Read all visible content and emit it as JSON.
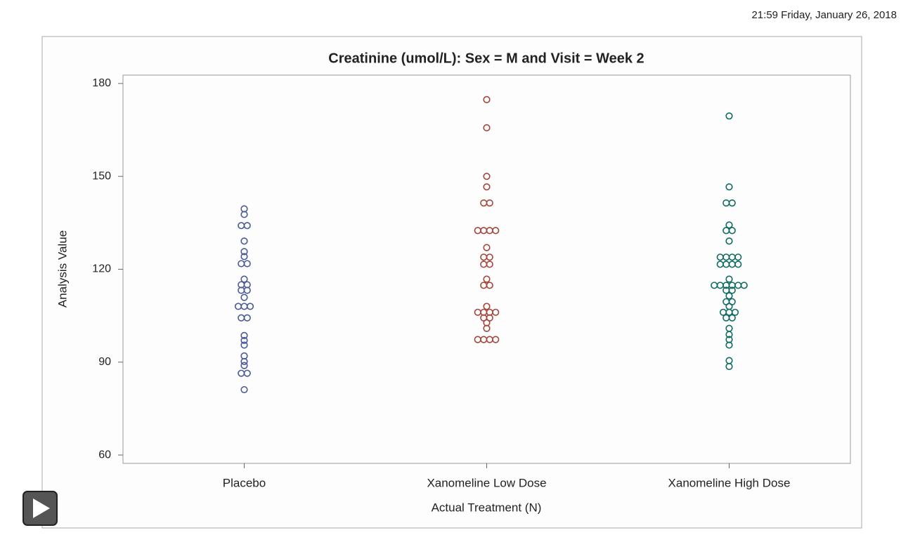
{
  "header": {
    "timestamp": "21:59 Friday, January 26, 2018"
  },
  "chart_data": {
    "type": "dotplot",
    "title": "Creatinine (umol/L): Sex = M and Visit = Week 2",
    "x_label": "Actual Treatment (N)",
    "y_label": "Analysis Value",
    "categories": [
      "Placebo",
      "Xanomeline Low Dose",
      "Xanomeline High Dose"
    ],
    "groups": [
      {
        "color": "#4a5a98",
        "values": [
          139.5,
          137.7,
          134.1,
          134.1,
          129.1,
          125.7,
          124.1,
          121.8,
          121.8,
          116.8,
          115,
          115,
          113.2,
          113.2,
          110.9,
          108,
          108,
          108,
          104.3,
          104.3,
          98.6,
          97,
          95.5,
          92,
          90.2,
          88.9,
          86.4,
          86.4,
          81.1
        ]
      },
      {
        "color": "#a5453a",
        "values": [
          174.8,
          165.7,
          150,
          146.6,
          141.4,
          141.4,
          132.5,
          132.5,
          132.5,
          132.5,
          127,
          123.9,
          123.9,
          121.6,
          121.6,
          116.8,
          114.8,
          114.8,
          108,
          106.1,
          106.1,
          106.1,
          106.1,
          104.3,
          104.3,
          102.7,
          100.9,
          97.3,
          97.3,
          97.3,
          97.3
        ]
      },
      {
        "color": "#0f6b63",
        "values": [
          169.5,
          146.6,
          141.4,
          141.4,
          134.3,
          132.5,
          132.5,
          129.1,
          123.9,
          123.9,
          123.9,
          123.9,
          121.6,
          121.6,
          121.6,
          121.6,
          116.8,
          114.8,
          114.8,
          114.8,
          114.8,
          114.8,
          114.8,
          113.2,
          113.2,
          111.4,
          109.5,
          109.5,
          108,
          106.1,
          106.1,
          106.1,
          104.3,
          104.3,
          100.9,
          98.9,
          97.3,
          95.5,
          90.5,
          88.6
        ]
      }
    ],
    "ylim": [
      57.3,
      182.7
    ],
    "yticks": [
      60,
      90,
      120,
      150,
      180
    ]
  }
}
